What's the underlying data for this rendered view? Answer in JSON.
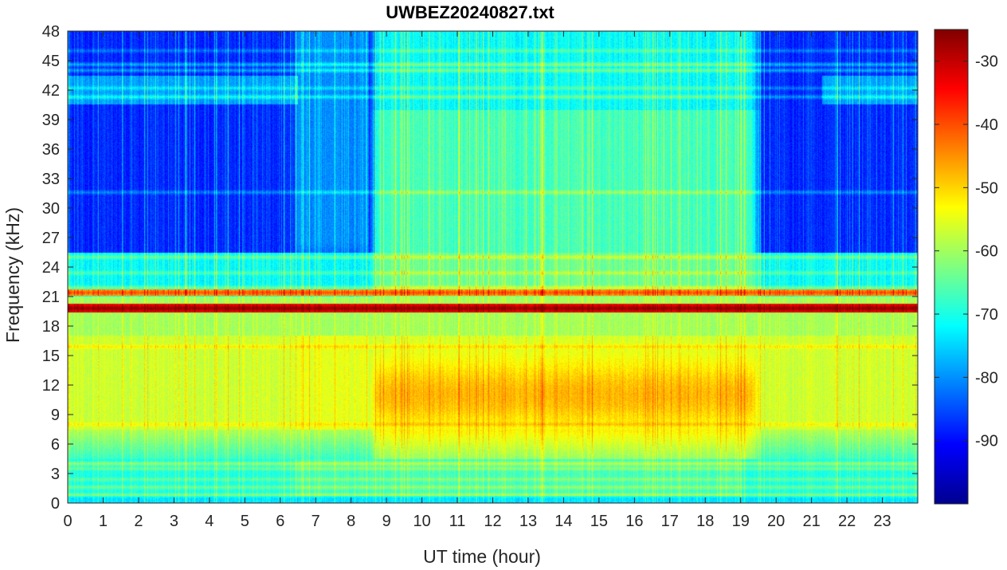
{
  "chart_data": {
    "type": "heatmap",
    "title": "UWBEZ20240827.txt",
    "xlabel": "UT time (hour)",
    "ylabel": "Frequency (kHz)",
    "xlim": [
      0,
      24
    ],
    "ylim": [
      0,
      48
    ],
    "xticks": [
      "0",
      "1",
      "2",
      "3",
      "4",
      "5",
      "6",
      "7",
      "8",
      "9",
      "10",
      "11",
      "12",
      "13",
      "14",
      "15",
      "16",
      "17",
      "18",
      "19",
      "20",
      "21",
      "22",
      "23"
    ],
    "yticks": [
      "0",
      "3",
      "6",
      "9",
      "12",
      "15",
      "18",
      "21",
      "24",
      "27",
      "30",
      "33",
      "36",
      "39",
      "42",
      "45",
      "48"
    ],
    "colormap": "jet",
    "color_range": [
      -100,
      -25
    ],
    "colorbar_ticks": [
      "-30",
      "-40",
      "-50",
      "-60",
      "-70",
      "-80",
      "-90"
    ],
    "colorbar_values": [
      -30,
      -40,
      -50,
      -60,
      -70,
      -80,
      -90
    ],
    "features": {
      "strong_carrier_khz": 19.8,
      "secondary_carrier_khz": 21.4,
      "daytime_enhancement_hours": [
        8.5,
        19.6
      ],
      "high_band_night_level": -88,
      "low_band_level": -57,
      "daytime_peak_band_khz": [
        8,
        14
      ],
      "daytime_peak_level": -48
    }
  }
}
